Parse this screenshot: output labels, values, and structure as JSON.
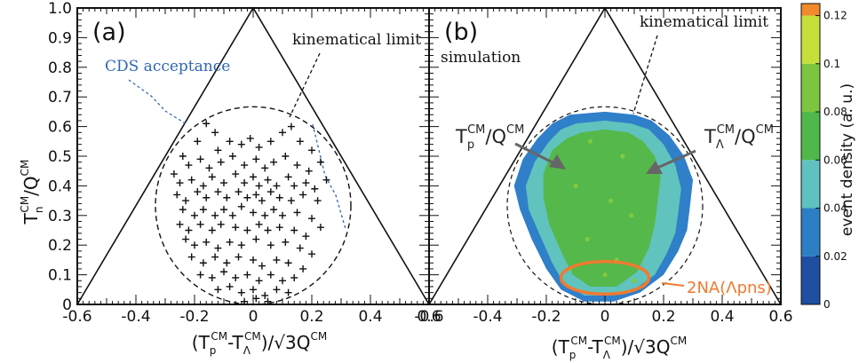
{
  "chart_data": [
    {
      "type": "scatter",
      "panel_label": "(a)",
      "xlabel_main": "(T",
      "xlabel_p": "p",
      "xlabel_cm": "CM",
      "xlabel_mid": "-T",
      "xlabel_lambda": "Λ",
      "xlabel_end": ")/√3Q",
      "ylabel_T": "T",
      "ylabel_n": "n",
      "ylabel_cm": "CM",
      "ylabel_Q": "/Q",
      "xlim": [
        -0.6,
        0.6
      ],
      "ylim": [
        0,
        1.0
      ],
      "x_ticks": [
        "-0.6",
        "-0.4",
        "-0.2",
        "0",
        "0.2",
        "0.4",
        "0.6"
      ],
      "y_ticks": [
        "0",
        "0.1",
        "0.2",
        "0.3",
        "0.4",
        "0.5",
        "0.6",
        "0.7",
        "0.8",
        "0.9",
        "1.0"
      ],
      "annotations": {
        "kinematical_limit": "kinematical limit",
        "cds_acceptance": "CDS acceptance"
      },
      "points": [
        [
          -0.16,
          0.61
        ],
        [
          -0.13,
          0.58
        ],
        [
          -0.19,
          0.55
        ],
        [
          -0.12,
          0.52
        ],
        [
          -0.08,
          0.55
        ],
        [
          -0.04,
          0.54
        ],
        [
          -0.01,
          0.56
        ],
        [
          0.02,
          0.53
        ],
        [
          0.06,
          0.55
        ],
        [
          0.1,
          0.58
        ],
        [
          0.13,
          0.6
        ],
        [
          0.16,
          0.55
        ],
        [
          0.2,
          0.52
        ],
        [
          -0.24,
          0.5
        ],
        [
          -0.22,
          0.47
        ],
        [
          -0.18,
          0.49
        ],
        [
          -0.15,
          0.46
        ],
        [
          -0.11,
          0.48
        ],
        [
          -0.07,
          0.5
        ],
        [
          -0.03,
          0.47
        ],
        [
          0.01,
          0.49
        ],
        [
          0.04,
          0.46
        ],
        [
          0.07,
          0.48
        ],
        [
          0.11,
          0.5
        ],
        [
          0.15,
          0.47
        ],
        [
          0.19,
          0.45
        ],
        [
          0.23,
          0.48
        ],
        [
          -0.27,
          0.44
        ],
        [
          -0.25,
          0.41
        ],
        [
          -0.21,
          0.42
        ],
        [
          -0.17,
          0.4
        ],
        [
          -0.14,
          0.43
        ],
        [
          -0.1,
          0.41
        ],
        [
          -0.06,
          0.44
        ],
        [
          -0.03,
          0.41
        ],
        [
          0.0,
          0.43
        ],
        [
          0.02,
          0.4
        ],
        [
          0.05,
          0.42
        ],
        [
          0.08,
          0.4
        ],
        [
          0.12,
          0.43
        ],
        [
          0.14,
          0.4
        ],
        [
          0.18,
          0.41
        ],
        [
          0.21,
          0.39
        ],
        [
          0.25,
          0.42
        ],
        [
          -0.26,
          0.37
        ],
        [
          -0.23,
          0.35
        ],
        [
          -0.19,
          0.38
        ],
        [
          -0.16,
          0.36
        ],
        [
          -0.12,
          0.38
        ],
        [
          -0.09,
          0.36
        ],
        [
          -0.05,
          0.38
        ],
        [
          -0.02,
          0.36
        ],
        [
          0.01,
          0.37
        ],
        [
          0.03,
          0.35
        ],
        [
          0.06,
          0.38
        ],
        [
          0.09,
          0.36
        ],
        [
          0.13,
          0.35
        ],
        [
          0.17,
          0.37
        ],
        [
          0.22,
          0.35
        ],
        [
          -0.24,
          0.32
        ],
        [
          -0.2,
          0.3
        ],
        [
          -0.17,
          0.32
        ],
        [
          -0.13,
          0.3
        ],
        [
          -0.1,
          0.32
        ],
        [
          -0.07,
          0.3
        ],
        [
          -0.04,
          0.33
        ],
        [
          0.0,
          0.31
        ],
        [
          0.04,
          0.3
        ],
        [
          0.07,
          0.32
        ],
        [
          0.1,
          0.3
        ],
        [
          0.15,
          0.31
        ],
        [
          0.2,
          0.29
        ],
        [
          -0.25,
          0.27
        ],
        [
          -0.22,
          0.25
        ],
        [
          -0.18,
          0.27
        ],
        [
          -0.14,
          0.25
        ],
        [
          -0.11,
          0.27
        ],
        [
          -0.06,
          0.26
        ],
        [
          -0.02,
          0.25
        ],
        [
          0.02,
          0.27
        ],
        [
          0.05,
          0.25
        ],
        [
          0.09,
          0.26
        ],
        [
          0.14,
          0.25
        ],
        [
          0.18,
          0.23
        ],
        [
          0.23,
          0.26
        ],
        [
          -0.23,
          0.22
        ],
        [
          -0.2,
          0.2
        ],
        [
          -0.16,
          0.21
        ],
        [
          -0.12,
          0.19
        ],
        [
          -0.08,
          0.21
        ],
        [
          -0.04,
          0.2
        ],
        [
          0.01,
          0.22
        ],
        [
          0.06,
          0.2
        ],
        [
          0.11,
          0.21
        ],
        [
          0.16,
          0.19
        ],
        [
          0.2,
          0.17
        ],
        [
          -0.21,
          0.16
        ],
        [
          -0.17,
          0.14
        ],
        [
          -0.13,
          0.16
        ],
        [
          -0.09,
          0.14
        ],
        [
          -0.05,
          0.16
        ],
        [
          0.0,
          0.15
        ],
        [
          0.03,
          0.13
        ],
        [
          0.08,
          0.15
        ],
        [
          0.12,
          0.14
        ],
        [
          0.17,
          0.12
        ],
        [
          -0.18,
          0.1
        ],
        [
          -0.14,
          0.09
        ],
        [
          -0.1,
          0.11
        ],
        [
          -0.06,
          0.09
        ],
        [
          -0.02,
          0.1
        ],
        [
          0.02,
          0.08
        ],
        [
          0.06,
          0.1
        ],
        [
          0.1,
          0.08
        ],
        [
          0.14,
          0.09
        ],
        [
          -0.12,
          0.05
        ],
        [
          -0.08,
          0.06
        ],
        [
          -0.04,
          0.04
        ],
        [
          0.0,
          0.05
        ],
        [
          0.04,
          0.03
        ],
        [
          0.08,
          0.05
        ],
        [
          0.12,
          0.04
        ],
        [
          -0.03,
          0.01
        ],
        [
          0.01,
          0.02
        ],
        [
          0.05,
          0.01
        ]
      ]
    },
    {
      "type": "heatmap",
      "panel_label": "(b)",
      "xlabel_main": "(T",
      "xlabel_p": "p",
      "xlabel_cm": "CM",
      "xlabel_mid": "-T",
      "xlabel_lambda": "Λ",
      "xlabel_end": ")/√3Q",
      "xlim": [
        -0.6,
        0.6
      ],
      "ylim": [
        0,
        1.0
      ],
      "x_ticks": [
        "-0.6",
        "-0.4",
        "-0.2",
        "0",
        "0.2",
        "0.4",
        "0.6"
      ],
      "annotations": {
        "kinematical_limit": "kinematical limit",
        "simulation": "simulation",
        "arrow_left_T": "T",
        "arrow_left_sub": "p",
        "arrow_left_sup": "CM",
        "arrow_left_Q": "/Q",
        "arrow_left_Qsup": "CM",
        "arrow_right_T": "T",
        "arrow_right_sub": "Λ",
        "arrow_right_sup": "CM",
        "arrow_right_Q": "/Q",
        "arrow_right_Qsup": "CM",
        "region_label": "2NA(Λpns)"
      },
      "colorbar": {
        "label": "event density (a. u.)",
        "range": [
          0,
          0.125
        ],
        "ticks": [
          "0",
          "0.02",
          "0.04",
          "0.06",
          "0.08",
          "0.1",
          "0.12"
        ],
        "colors": [
          "#1f4fa0",
          "#2c7fc4",
          "#5fc1c0",
          "#4fb84a",
          "#7cc540",
          "#c6df3a",
          "#f08a2c"
        ]
      },
      "outer_boundary": [
        [
          -0.12,
          0.64
        ],
        [
          0.0,
          0.65
        ],
        [
          0.1,
          0.64
        ],
        [
          0.16,
          0.62
        ],
        [
          0.22,
          0.57
        ],
        [
          0.27,
          0.5
        ],
        [
          0.3,
          0.42
        ],
        [
          0.29,
          0.33
        ],
        [
          0.28,
          0.25
        ],
        [
          0.25,
          0.18
        ],
        [
          0.2,
          0.1
        ],
        [
          0.12,
          0.04
        ],
        [
          0.03,
          0.01
        ],
        [
          -0.07,
          0.01
        ],
        [
          -0.15,
          0.05
        ],
        [
          -0.2,
          0.12
        ],
        [
          -0.25,
          0.22
        ],
        [
          -0.29,
          0.32
        ],
        [
          -0.31,
          0.4
        ],
        [
          -0.28,
          0.49
        ],
        [
          -0.23,
          0.56
        ],
        [
          -0.18,
          0.61
        ]
      ],
      "inner_boundary": [
        [
          -0.1,
          0.61
        ],
        [
          0.0,
          0.62
        ],
        [
          0.09,
          0.61
        ],
        [
          0.15,
          0.59
        ],
        [
          0.2,
          0.54
        ],
        [
          0.24,
          0.47
        ],
        [
          0.26,
          0.39
        ],
        [
          0.25,
          0.31
        ],
        [
          0.24,
          0.24
        ],
        [
          0.21,
          0.17
        ],
        [
          0.17,
          0.1
        ],
        [
          0.1,
          0.05
        ],
        [
          0.02,
          0.03
        ],
        [
          -0.07,
          0.03
        ],
        [
          -0.14,
          0.07
        ],
        [
          -0.18,
          0.14
        ],
        [
          -0.22,
          0.23
        ],
        [
          -0.26,
          0.32
        ],
        [
          -0.27,
          0.4
        ],
        [
          -0.24,
          0.48
        ],
        [
          -0.19,
          0.55
        ],
        [
          -0.15,
          0.59
        ]
      ],
      "core_boundary": [
        [
          -0.08,
          0.58
        ],
        [
          0.0,
          0.59
        ],
        [
          0.08,
          0.58
        ],
        [
          0.13,
          0.55
        ],
        [
          0.17,
          0.5
        ],
        [
          0.19,
          0.43
        ],
        [
          0.18,
          0.35
        ],
        [
          0.17,
          0.27
        ],
        [
          0.15,
          0.19
        ],
        [
          0.11,
          0.11
        ],
        [
          0.04,
          0.06
        ],
        [
          -0.05,
          0.06
        ],
        [
          -0.11,
          0.1
        ],
        [
          -0.15,
          0.18
        ],
        [
          -0.19,
          0.27
        ],
        [
          -0.21,
          0.36
        ],
        [
          -0.21,
          0.44
        ],
        [
          -0.18,
          0.52
        ],
        [
          -0.13,
          0.56
        ]
      ],
      "highlight_ellipse": {
        "center": [
          0.0,
          0.09
        ],
        "rx": 0.15,
        "ry": 0.055
      }
    }
  ]
}
